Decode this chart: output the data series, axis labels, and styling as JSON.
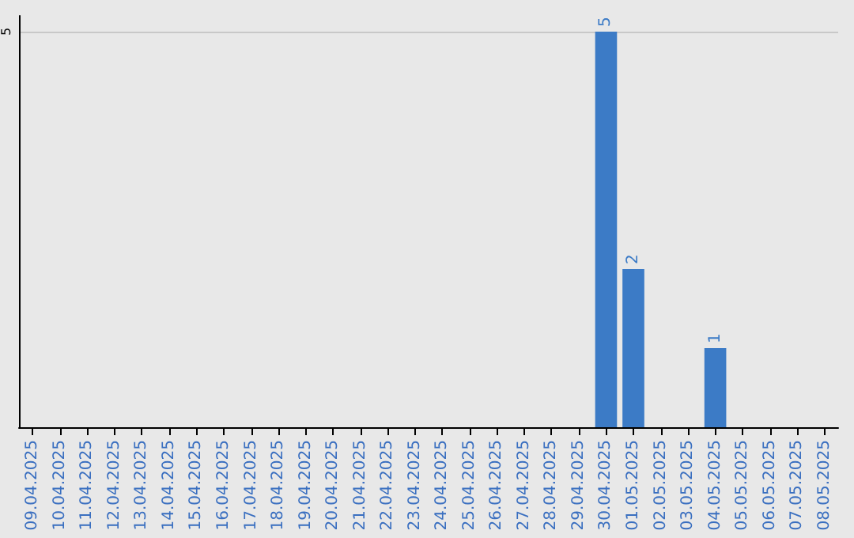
{
  "chart_data": {
    "type": "bar",
    "categories": [
      "09.04.2025",
      "10.04.2025",
      "11.04.2025",
      "12.04.2025",
      "13.04.2025",
      "14.04.2025",
      "15.04.2025",
      "16.04.2025",
      "17.04.2025",
      "18.04.2025",
      "19.04.2025",
      "20.04.2025",
      "21.04.2025",
      "22.04.2025",
      "23.04.2025",
      "24.04.2025",
      "25.04.2025",
      "26.04.2025",
      "27.04.2025",
      "28.04.2025",
      "29.04.2025",
      "30.04.2025",
      "01.05.2025",
      "02.05.2025",
      "03.05.2025",
      "04.05.2025",
      "05.05.2025",
      "06.05.2025",
      "07.05.2025",
      "08.05.2025"
    ],
    "values": [
      null,
      null,
      null,
      null,
      null,
      null,
      null,
      null,
      null,
      null,
      null,
      null,
      null,
      null,
      null,
      null,
      null,
      null,
      null,
      null,
      null,
      5,
      2,
      null,
      null,
      1,
      null,
      null,
      null,
      null
    ],
    "color": "#3c7bc6",
    "ylim": [
      0,
      5.2
    ],
    "yticks": [
      5
    ],
    "grid": "y",
    "data_labels": true
  }
}
